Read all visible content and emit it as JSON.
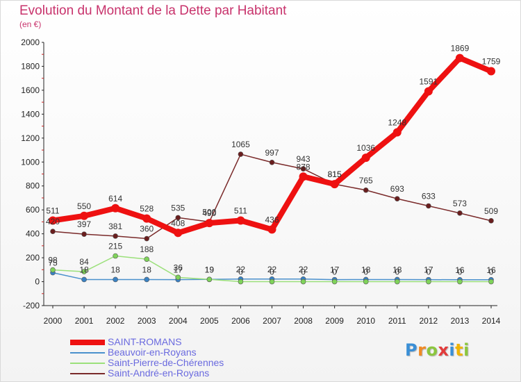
{
  "title": "Evolution du Montant de la Dette par Habitant",
  "subtitle": "(en €)",
  "logo_letters": [
    "P",
    "r",
    "o",
    "x",
    "i",
    "t",
    "i"
  ],
  "chart_data": {
    "type": "line",
    "x": [
      "2000",
      "2001",
      "2002",
      "2003",
      "2004",
      "2005",
      "2006",
      "2007",
      "2008",
      "2009",
      "2010",
      "2011",
      "2012",
      "2013",
      "2014"
    ],
    "y_ticks": [
      "2000",
      "1800",
      "1600",
      "1400",
      "1200",
      "1000",
      "800",
      "600",
      "400",
      "200",
      "0",
      "-200"
    ],
    "ylim": [
      -200,
      2000
    ],
    "grid": false,
    "legend_position": "bottom-left",
    "series": [
      {
        "name": "SAINT-ROMANS",
        "color": "#ee1111",
        "dot_color": "#ee1111",
        "values": [
          511,
          550,
          614,
          528,
          408,
          490,
          511,
          436,
          878,
          815,
          1036,
          1248,
          1591,
          1869,
          1759
        ],
        "labels": [
          "511",
          "550",
          "614",
          "528",
          "408",
          "490",
          "511",
          "436",
          "878",
          "815",
          "1036",
          "1248",
          "1591",
          "1869",
          "1759"
        ]
      },
      {
        "name": "Beauvoir-en-Royans",
        "color": "#4a90cc",
        "dot_color": "#3a82c4",
        "values": [
          75,
          18,
          18,
          18,
          17,
          19,
          22,
          22,
          22,
          17,
          18,
          18,
          17,
          16,
          16
        ],
        "labels": [
          "75",
          "18",
          "18",
          "18",
          "17",
          "19",
          "22",
          "22",
          "22",
          "17",
          "18",
          "18",
          "17",
          "16",
          "16"
        ]
      },
      {
        "name": "Saint-Pierre-de-Chérennes",
        "color": "#9be07a",
        "dot_color": "#7fd35a",
        "values": [
          98,
          84,
          215,
          188,
          36,
          19,
          0,
          0,
          0,
          0,
          0,
          0,
          0,
          0,
          0
        ],
        "labels": [
          "98",
          "84",
          "215",
          "188",
          "36",
          "19",
          "0",
          "0",
          "0",
          "0",
          "0",
          "0",
          "0",
          "0",
          "0"
        ]
      },
      {
        "name": "Saint-André-en-Royans",
        "color": "#7a2a2a",
        "dot_color": "#6a1e1e",
        "values": [
          420,
          397,
          381,
          360,
          535,
          500,
          1065,
          997,
          943,
          815,
          765,
          693,
          633,
          573,
          509
        ],
        "labels": [
          "420",
          "397",
          "381",
          "360",
          "535",
          "500",
          "1065",
          "997",
          "943",
          "815",
          "765",
          "693",
          "633",
          "573",
          "509"
        ]
      }
    ]
  }
}
